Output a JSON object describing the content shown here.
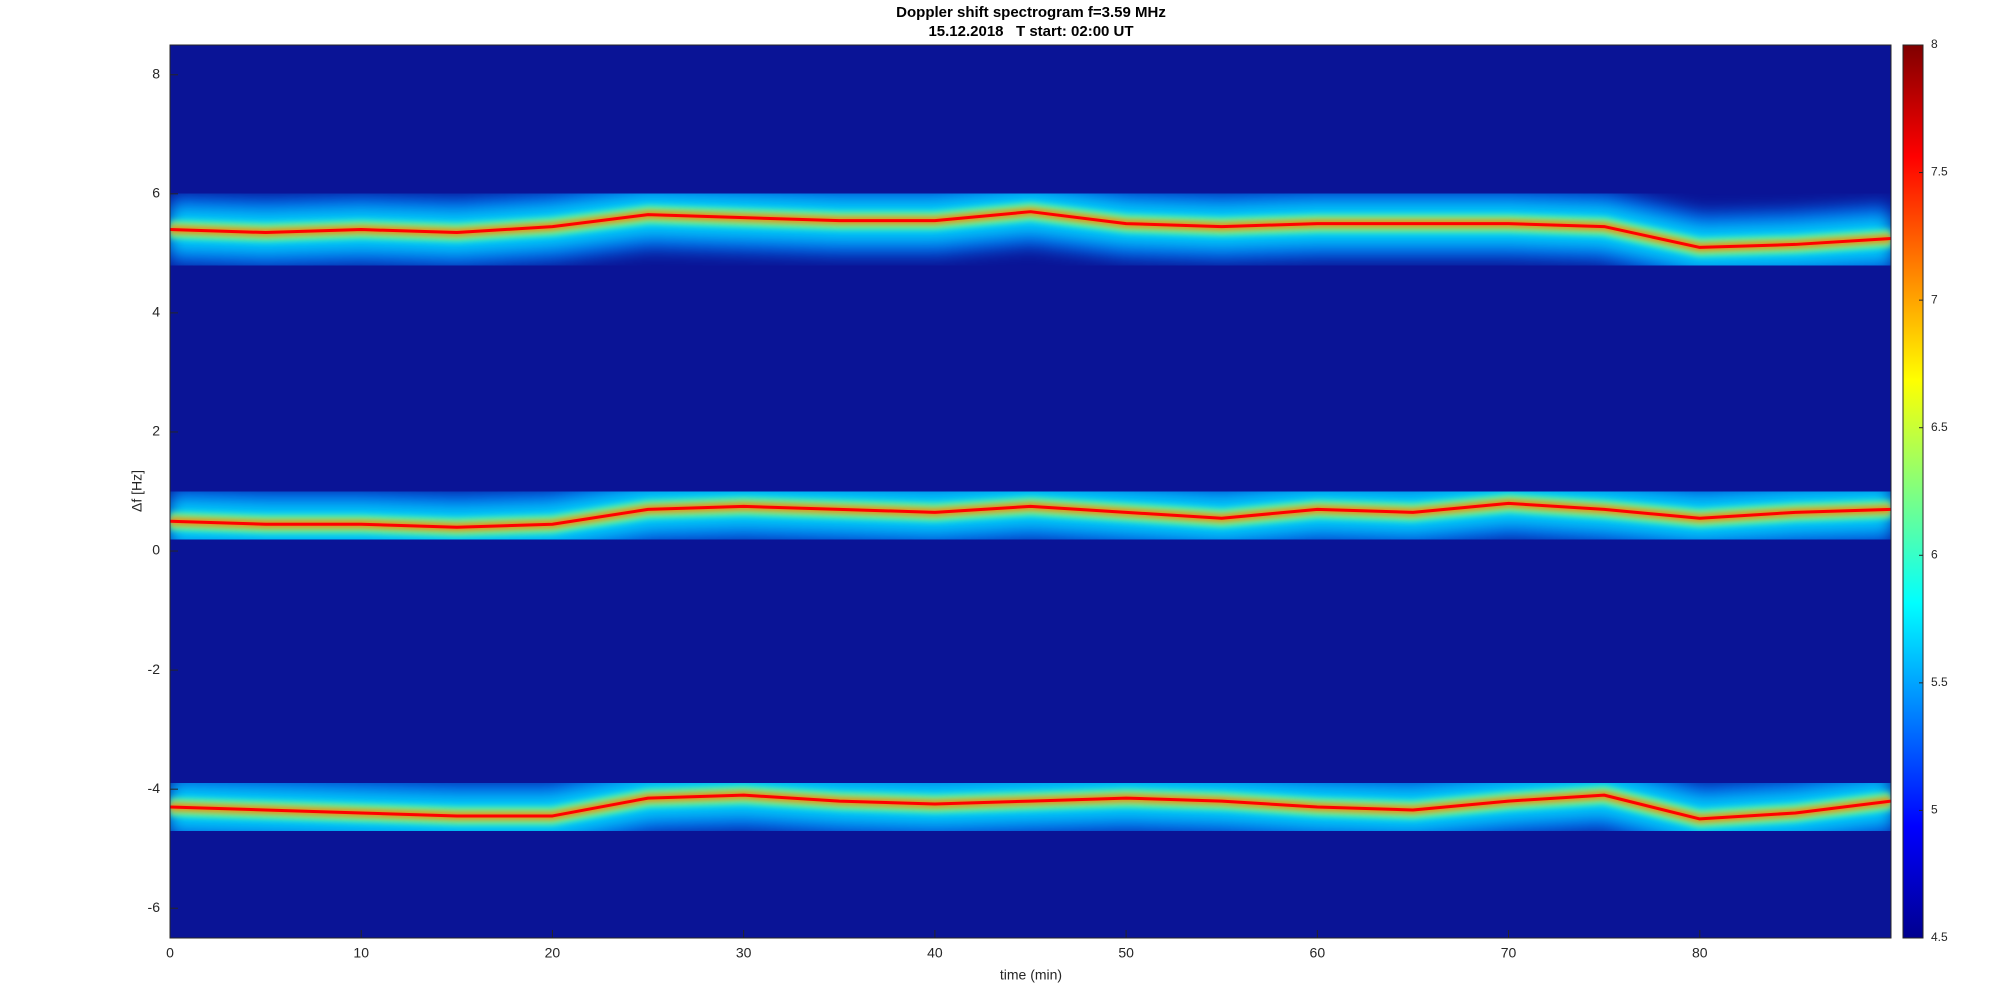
{
  "chart_data": {
    "type": "spectrogram",
    "title": "Doppler shift spectrogram f=3.59 MHz",
    "subtitle": "15.12.2018   T start: 02:00 UT",
    "x_label": "time (min)",
    "y_label": "Δf [Hz]",
    "xlim": [
      0,
      90
    ],
    "xticks": [
      0,
      10,
      20,
      30,
      40,
      50,
      60,
      70,
      80
    ],
    "ylim": [
      -6.5,
      8.5
    ],
    "yticks": [
      -6,
      -4,
      -2,
      0,
      2,
      4,
      6,
      8
    ],
    "clim": [
      4.5,
      8
    ],
    "cticks": [
      4.5,
      5,
      5.5,
      6,
      6.5,
      7,
      7.5,
      8
    ],
    "colormap": [
      "#00008f",
      "#0000ff",
      "#0080ff",
      "#00ffff",
      "#80ff80",
      "#ffff00",
      "#ff8000",
      "#ff0000",
      "#800000"
    ],
    "background": "#0a1496",
    "x": [
      0,
      5,
      10,
      15,
      20,
      25,
      30,
      35,
      40,
      45,
      50,
      55,
      60,
      65,
      70,
      75,
      80,
      85,
      90
    ],
    "traces": [
      {
        "values": [
          5.4,
          5.35,
          5.4,
          5.35,
          5.45,
          5.65,
          5.6,
          5.55,
          5.55,
          5.7,
          5.5,
          5.45,
          5.5,
          5.5,
          5.5,
          5.45,
          5.1,
          5.15,
          5.25
        ]
      },
      {
        "values": [
          0.5,
          0.45,
          0.45,
          0.4,
          0.45,
          0.7,
          0.75,
          0.7,
          0.65,
          0.75,
          0.65,
          0.55,
          0.7,
          0.65,
          0.8,
          0.7,
          0.55,
          0.65,
          0.7
        ]
      },
      {
        "values": [
          -4.3,
          -4.35,
          -4.4,
          -4.45,
          -4.45,
          -4.15,
          -4.1,
          -4.2,
          -4.25,
          -4.2,
          -4.15,
          -4.2,
          -4.3,
          -4.35,
          -4.2,
          -4.1,
          -4.5,
          -4.4,
          -4.2
        ]
      }
    ]
  }
}
